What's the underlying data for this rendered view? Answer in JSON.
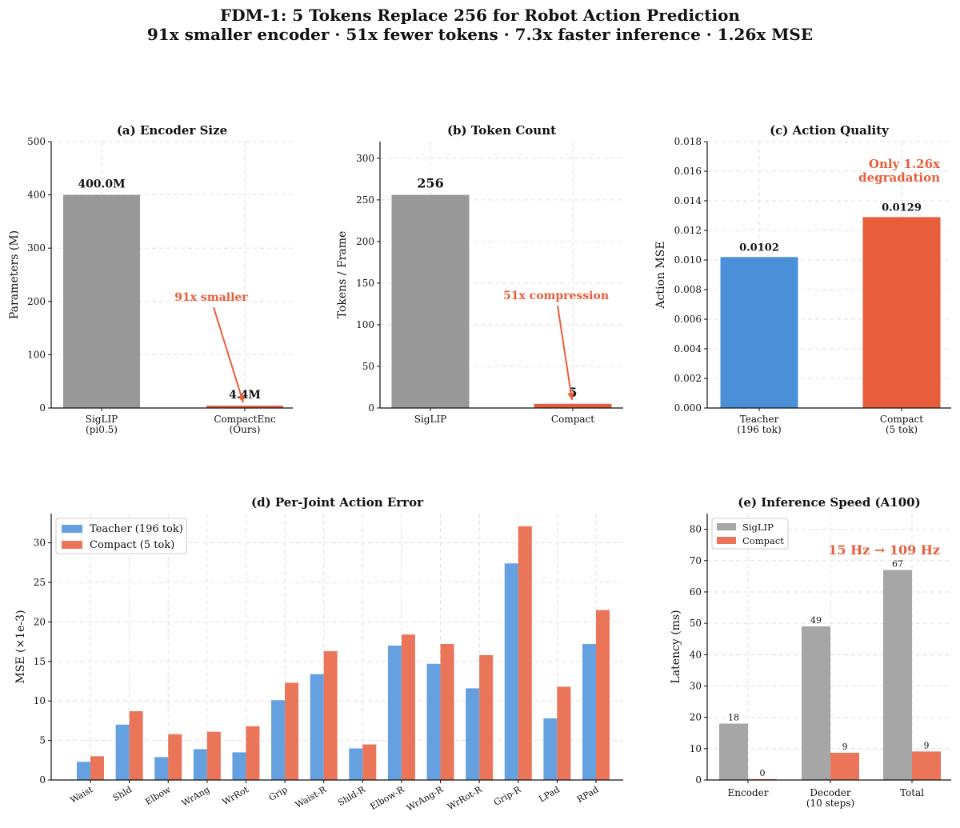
{
  "figure": {
    "title_line1": "FDM-1: 5 Tokens Replace 256 for Robot Action Prediction",
    "title_line2": "91x smaller encoder · 51x fewer tokens · 7.3x faster inference · 1.26x MSE"
  },
  "colors": {
    "gray": "#999999",
    "orange": "#e85d3a",
    "blue": "#4a90d9",
    "gray_light": "#a6a6a6",
    "orange_light": "#ea7558",
    "blue_light": "#65a1e0"
  },
  "chart_data": [
    {
      "id": "a",
      "type": "bar",
      "title": "(a) Encoder Size",
      "xlabel": "",
      "ylabel": "Parameters (M)",
      "ylim": [
        0,
        500
      ],
      "yticks": [
        "0",
        "100",
        "200",
        "300",
        "400",
        "500"
      ],
      "categories": [
        "SigLIP\n(pi0.5)",
        "CompactEnc\n(Ours)"
      ],
      "values": [
        400.0,
        4.4
      ],
      "value_labels": [
        "400.0M",
        "4.4M"
      ],
      "annotation": "91x smaller",
      "grid": true
    },
    {
      "id": "b",
      "type": "bar",
      "title": "(b) Token Count",
      "xlabel": "",
      "ylabel": "Tokens / Frame",
      "ylim": [
        0,
        320
      ],
      "yticks": [
        "0",
        "50",
        "100",
        "150",
        "200",
        "250",
        "300"
      ],
      "categories": [
        "SigLIP",
        "Compact"
      ],
      "values": [
        256,
        5
      ],
      "value_labels": [
        "256",
        "5"
      ],
      "annotation": "51x compression",
      "grid": true
    },
    {
      "id": "c",
      "type": "bar",
      "title": "(c) Action Quality",
      "xlabel": "",
      "ylabel": "Action MSE",
      "ylim": [
        0,
        0.018
      ],
      "yticks": [
        "0.000",
        "0.002",
        "0.004",
        "0.006",
        "0.008",
        "0.010",
        "0.012",
        "0.014",
        "0.016",
        "0.018"
      ],
      "categories": [
        "Teacher\n(196 tok)",
        "Compact\n(5 tok)"
      ],
      "values": [
        0.0102,
        0.0129
      ],
      "value_labels": [
        "0.0102",
        "0.0129"
      ],
      "annotation": "Only 1.26x\ndegradation",
      "grid": true
    },
    {
      "id": "d",
      "type": "bar",
      "title": "(d) Per-Joint Action Error",
      "xlabel": "",
      "ylabel": "MSE (×1e-3)",
      "ylim": [
        0,
        33.7
      ],
      "yticks": [
        "0",
        "5",
        "10",
        "15",
        "20",
        "25",
        "30"
      ],
      "categories": [
        "Waist",
        "Shld",
        "Elbow",
        "WrAng",
        "WrRot",
        "Grip",
        "Waist-R",
        "Shld-R",
        "Elbow-R",
        "WrAng-R",
        "WrRot-R",
        "Grip-R",
        "LPad",
        "RPad"
      ],
      "series": [
        {
          "name": "Teacher (196 tok)",
          "values": [
            2.3,
            7.0,
            2.9,
            3.9,
            3.5,
            10.1,
            13.4,
            4.0,
            17.0,
            14.7,
            11.6,
            27.4,
            7.8,
            17.2
          ]
        },
        {
          "name": "Compact (5 tok)",
          "values": [
            3.0,
            8.7,
            5.8,
            6.1,
            6.8,
            12.3,
            16.3,
            4.5,
            18.4,
            17.2,
            15.8,
            32.1,
            11.8,
            21.5
          ]
        }
      ],
      "legend_position": "upper-left",
      "grid": true
    },
    {
      "id": "e",
      "type": "bar",
      "title": "(e) Inference Speed (A100)",
      "xlabel": "",
      "ylabel": "Latency (ms)",
      "ylim": [
        0,
        85
      ],
      "yticks": [
        "0",
        "10",
        "20",
        "30",
        "40",
        "50",
        "60",
        "70",
        "80"
      ],
      "categories": [
        "Encoder",
        "Decoder\n(10 steps)",
        "Total"
      ],
      "series": [
        {
          "name": "SigLIP",
          "values": [
            18,
            49,
            67
          ],
          "value_labels": [
            "18",
            "49",
            "67"
          ]
        },
        {
          "name": "Compact",
          "values": [
            0.3,
            8.7,
            9.1
          ],
          "value_labels": [
            "0",
            "9",
            "9"
          ]
        }
      ],
      "annotation": "15 Hz → 109 Hz",
      "legend_position": "upper-left",
      "grid": true
    }
  ]
}
